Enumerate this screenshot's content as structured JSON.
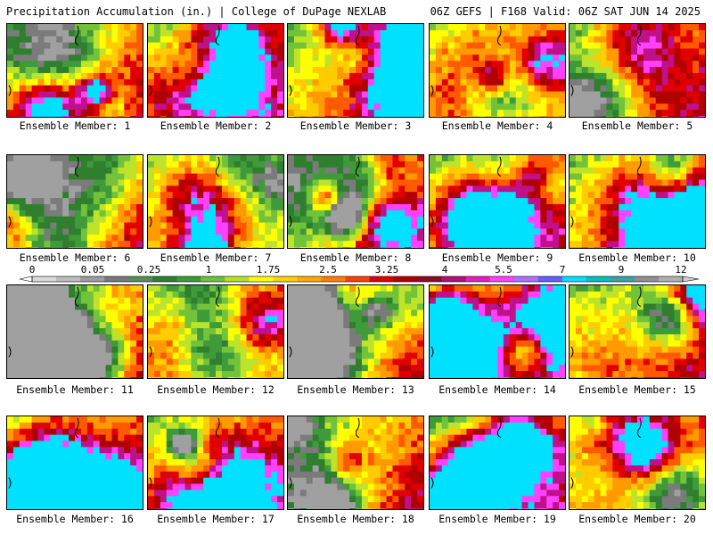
{
  "header": {
    "title_left": "Precipitation Accumulation (in.) | College of DuPage NEXLAB",
    "title_right": "06Z GEFS | F168 Valid: 06Z SAT JUN 14 2025"
  },
  "colorbar": {
    "labels": [
      "0",
      "0.05",
      "0.25",
      "1",
      "1.75",
      "2.5",
      "3.25",
      "4",
      "5.5",
      "7",
      "9",
      "12"
    ],
    "colors": [
      "#d9d9d9",
      "#bdbdbd",
      "#9e9e9e",
      "#7a7a7a",
      "#5a8c5a",
      "#2f7f2f",
      "#3a9a3a",
      "#6cc23a",
      "#b7e02a",
      "#ffff00",
      "#ffd400",
      "#ffab00",
      "#ff8000",
      "#ff4000",
      "#e00000",
      "#b00000",
      "#8a0a2a",
      "#b0107a",
      "#e020c0",
      "#ff40ff",
      "#b070ff",
      "#6060ff",
      "#00e0ff",
      "#00c0c0",
      "#40a0a0",
      "#909090",
      "#b0b0b0"
    ]
  },
  "panels": [
    {
      "label": "Ensemble Member: 1"
    },
    {
      "label": "Ensemble Member: 2"
    },
    {
      "label": "Ensemble Member: 3"
    },
    {
      "label": "Ensemble Member: 4"
    },
    {
      "label": "Ensemble Member: 5"
    },
    {
      "label": "Ensemble Member: 6"
    },
    {
      "label": "Ensemble Member: 7"
    },
    {
      "label": "Ensemble Member: 8"
    },
    {
      "label": "Ensemble Member: 9"
    },
    {
      "label": "Ensemble Member: 10"
    },
    {
      "label": "Ensemble Member: 11"
    },
    {
      "label": "Ensemble Member: 12"
    },
    {
      "label": "Ensemble Member: 13"
    },
    {
      "label": "Ensemble Member: 14"
    },
    {
      "label": "Ensemble Member: 15"
    },
    {
      "label": "Ensemble Member: 16"
    },
    {
      "label": "Ensemble Member: 17"
    },
    {
      "label": "Ensemble Member: 18"
    },
    {
      "label": "Ensemble Member: 19"
    },
    {
      "label": "Ensemble Member: 20"
    }
  ]
}
